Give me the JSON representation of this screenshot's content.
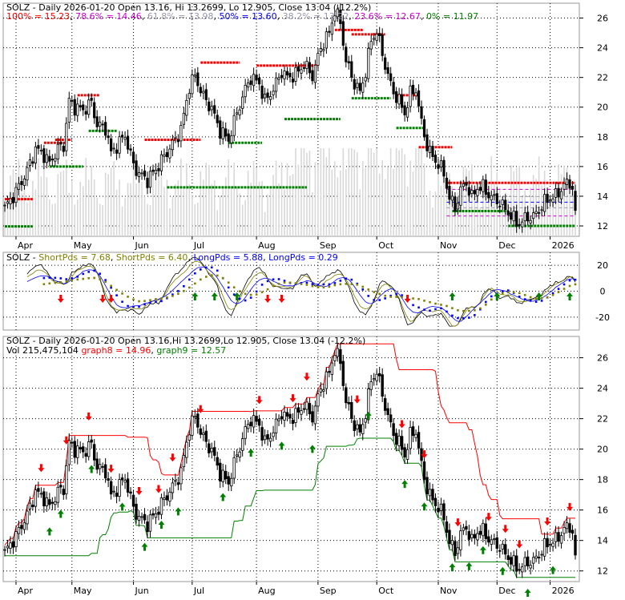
{
  "chart_data": [
    {
      "type": "candlestick",
      "title": "SOLZ - Daily 2026-01-20 Open 13.16, Hi 13.2699, Lo 12.905, Close 13.04 (-12.2%)",
      "fib_levels": [
        {
          "label": "100% = 15.23",
          "value": 15.23,
          "color": "#ff0000"
        },
        {
          "label": "78.6% = 14.46",
          "value": 14.46,
          "color": "#cc00cc"
        },
        {
          "label": "61.8% = 13.98",
          "value": 13.98,
          "color": "#9999aa"
        },
        {
          "label": "50% = 13.60",
          "value": 13.6,
          "color": "#0000ff"
        },
        {
          "label": "38.2% = 13.22",
          "value": 13.22,
          "color": "#9999aa"
        },
        {
          "label": "23.6% = 12.67",
          "value": 12.67,
          "color": "#cc00cc"
        },
        {
          "label": "0% = 11.97",
          "value": 11.97,
          "color": "#008000"
        }
      ],
      "ylim": [
        11.3,
        27
      ],
      "y_ticks": [
        "12",
        "14",
        "16",
        "18",
        "20",
        "22",
        "24",
        "26"
      ],
      "x_ticks": [
        "Apr",
        "May",
        "Jun",
        "Jul",
        "Aug",
        "Sep",
        "Oct",
        "Nov",
        "Dec",
        "2026"
      ],
      "grid": true
    },
    {
      "type": "line",
      "title_parts": [
        {
          "text": "SOLZ - ",
          "color": "#000000"
        },
        {
          "text": "ShortPds = 7.68",
          "color": "#808000"
        },
        {
          "text": ", ",
          "color": "#000000"
        },
        {
          "text": "ShortPds = 6.40",
          "color": "#808000"
        },
        {
          "text": ", ",
          "color": "#000000"
        },
        {
          "text": "LongPds = 5.88",
          "color": "#0000ff"
        },
        {
          "text": ", ",
          "color": "#000000"
        },
        {
          "text": "LongPds = 0.29",
          "color": "#0000ff"
        }
      ],
      "ylim": [
        -30,
        30
      ],
      "y_ticks": [
        "20",
        "0",
        "-20"
      ],
      "grid": true
    },
    {
      "type": "candlestick",
      "title": "SOLZ - Daily 2026-01-20 Open 13.16,Hi 13.2699,Lo 12.905, Close 13.04 (-12.2%)",
      "subtitle_parts": [
        {
          "text": "Vol 215,475,104 ",
          "color": "#000000"
        },
        {
          "text": "graph8 = 14.96",
          "color": "#ff0000"
        },
        {
          "text": ", ",
          "color": "#000000"
        },
        {
          "text": "graph9 = 12.57",
          "color": "#008000"
        }
      ],
      "ylim": [
        11.3,
        27.4
      ],
      "y_ticks": [
        "12",
        "14",
        "16",
        "18",
        "20",
        "22",
        "24",
        "26"
      ],
      "x_ticks": [
        "Apr",
        "May",
        "Jun",
        "Jul",
        "Aug",
        "Sep",
        "Oct",
        "Nov",
        "Dec",
        "2026"
      ],
      "grid": true
    }
  ],
  "colors": {
    "up": "#000000",
    "down": "#000000",
    "resist": "#ff0000",
    "support": "#008000",
    "magenta": "#cc00cc",
    "blue": "#0000ff",
    "olive": "#808000",
    "volume": "#d8d8d8",
    "grid": "#000000"
  }
}
